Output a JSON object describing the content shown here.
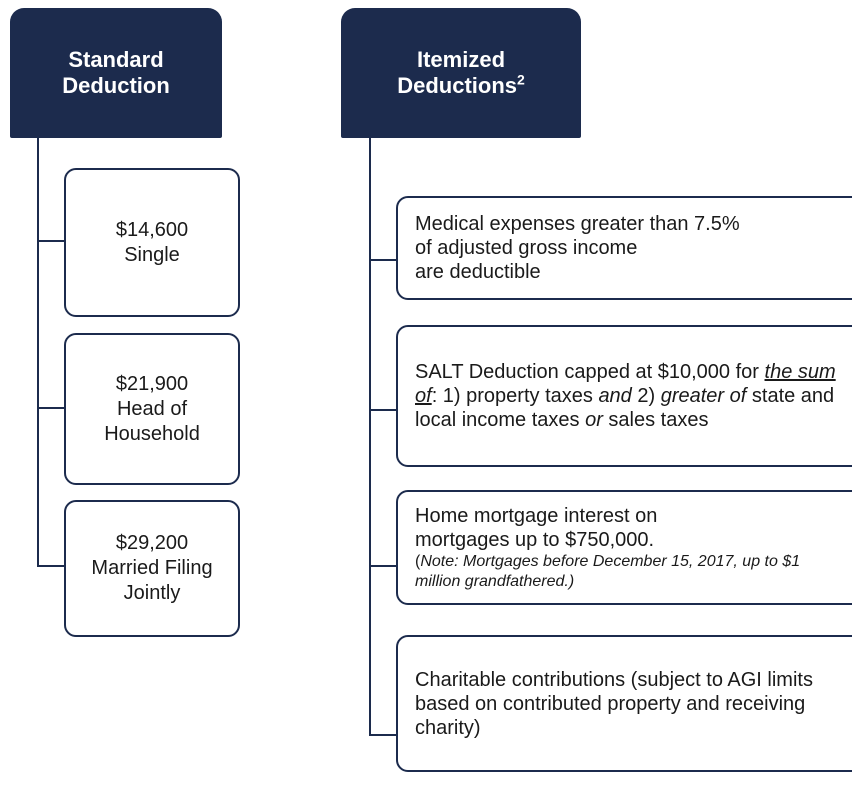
{
  "left": {
    "title": "Standard Deduction",
    "items": [
      {
        "amount": "$14,600",
        "label": "Single"
      },
      {
        "amount": "$21,900",
        "label": "Head of Household"
      },
      {
        "amount": "$29,200",
        "label": "Married Filing Jointly"
      }
    ]
  },
  "right": {
    "title": "Itemized Deductions",
    "superscript": "2",
    "items": [
      [
        "Medical expenses greater than 7.5%",
        "of adjusted gross income",
        "are deductible"
      ],
      [
        "SALT Deduction capped at $10,000 for ",
        "the sum of",
        ": 1) property taxes ",
        "and",
        " 2) ",
        "greater of",
        " state and local income taxes ",
        "or",
        " sales taxes"
      ],
      [
        "Home mortgage interest on mortgages up to $750,000.",
        "(",
        "Note: Mortgages before December 15, 2017, up to $1 million grandfathered.)"
      ],
      [
        "Charitable contributions (subject to AGI limits based on contributed property and receiving charity)"
      ]
    ]
  }
}
